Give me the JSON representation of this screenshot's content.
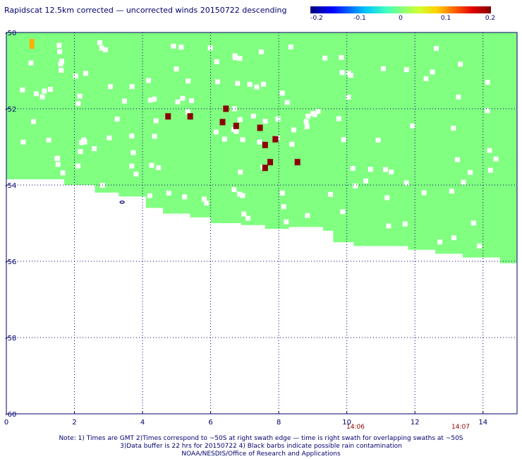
{
  "header": {
    "title": "Rapidscat 12.5km corrected — uncorrected winds 20150722 descending",
    "colorbar_ticks": [
      "-0.2",
      "-0.1",
      "0",
      "0.1",
      "0.2"
    ]
  },
  "notes": {
    "line1": "Note: 1) Times are GMT 2)Times correspond to ~50S at right swath edge — time is right swath for overlapping swaths at ~50S",
    "line2": "3)Data buffer is 22 hrs for 20150722 4) Black barbs indicate possible rain contamination",
    "line3": "NOAA/NESDIS/Office of Research and Applications"
  },
  "time_labels": [
    {
      "text": "14:06",
      "x": 10.3
    },
    {
      "text": "14:07",
      "x": 13.4
    }
  ],
  "colors": {
    "swath": "#80ff80",
    "dark_red": "#8b0000",
    "orange": "#ffb000",
    "grid": "#00006e",
    "text": "#00006e"
  },
  "chart_data": {
    "type": "heatmap",
    "title": "Rapidscat 12.5km corrected — uncorrected winds 20150722 descending",
    "xlim": [
      0,
      15
    ],
    "ylim": [
      -60,
      -50
    ],
    "x_ticks": [
      "0",
      "2",
      "4",
      "6",
      "8",
      "10",
      "12",
      "14"
    ],
    "y_ticks": [
      "-50",
      "-52",
      "-54",
      "-56",
      "-58",
      "-60"
    ],
    "grid": true,
    "colorbar": {
      "min": -0.2,
      "max": 0.2,
      "ticks": [
        -0.2,
        -0.1,
        0,
        0.1,
        0.2
      ]
    },
    "swath_lower_boundary": [
      [
        0,
        -53.85
      ],
      [
        1.2,
        -53.85
      ],
      [
        1.7,
        -54.0
      ],
      [
        2.6,
        -54.2
      ],
      [
        3.3,
        -54.3
      ],
      [
        4.1,
        -54.6
      ],
      [
        4.6,
        -54.75
      ],
      [
        5.4,
        -54.85
      ],
      [
        6.0,
        -55.0
      ],
      [
        6.9,
        -55.05
      ],
      [
        7.6,
        -55.15
      ],
      [
        8.3,
        -55.1
      ],
      [
        9.3,
        -55.2
      ],
      [
        9.6,
        -55.5
      ],
      [
        10.2,
        -55.6
      ],
      [
        11.2,
        -55.6
      ],
      [
        11.8,
        -55.7
      ],
      [
        12.6,
        -55.8
      ],
      [
        13.4,
        -55.9
      ],
      [
        14.5,
        -56.05
      ],
      [
        15,
        -56.05
      ]
    ],
    "notable_cells": [
      {
        "x": 0.75,
        "y": -50.3,
        "value": 0.12
      },
      {
        "x": 4.75,
        "y": -52.2,
        "value": 0.2
      },
      {
        "x": 5.4,
        "y": -52.2,
        "value": 0.2
      },
      {
        "x": 6.45,
        "y": -52.0,
        "value": 0.2
      },
      {
        "x": 6.35,
        "y": -52.35,
        "value": 0.2
      },
      {
        "x": 6.75,
        "y": -52.45,
        "value": 0.2
      },
      {
        "x": 7.45,
        "y": -52.5,
        "value": 0.2
      },
      {
        "x": 7.9,
        "y": -52.8,
        "value": 0.2
      },
      {
        "x": 7.6,
        "y": -52.95,
        "value": 0.2
      },
      {
        "x": 7.75,
        "y": -53.4,
        "value": 0.2
      },
      {
        "x": 7.6,
        "y": -53.55,
        "value": 0.2
      },
      {
        "x": 8.55,
        "y": -53.4,
        "value": 0.2
      }
    ]
  }
}
